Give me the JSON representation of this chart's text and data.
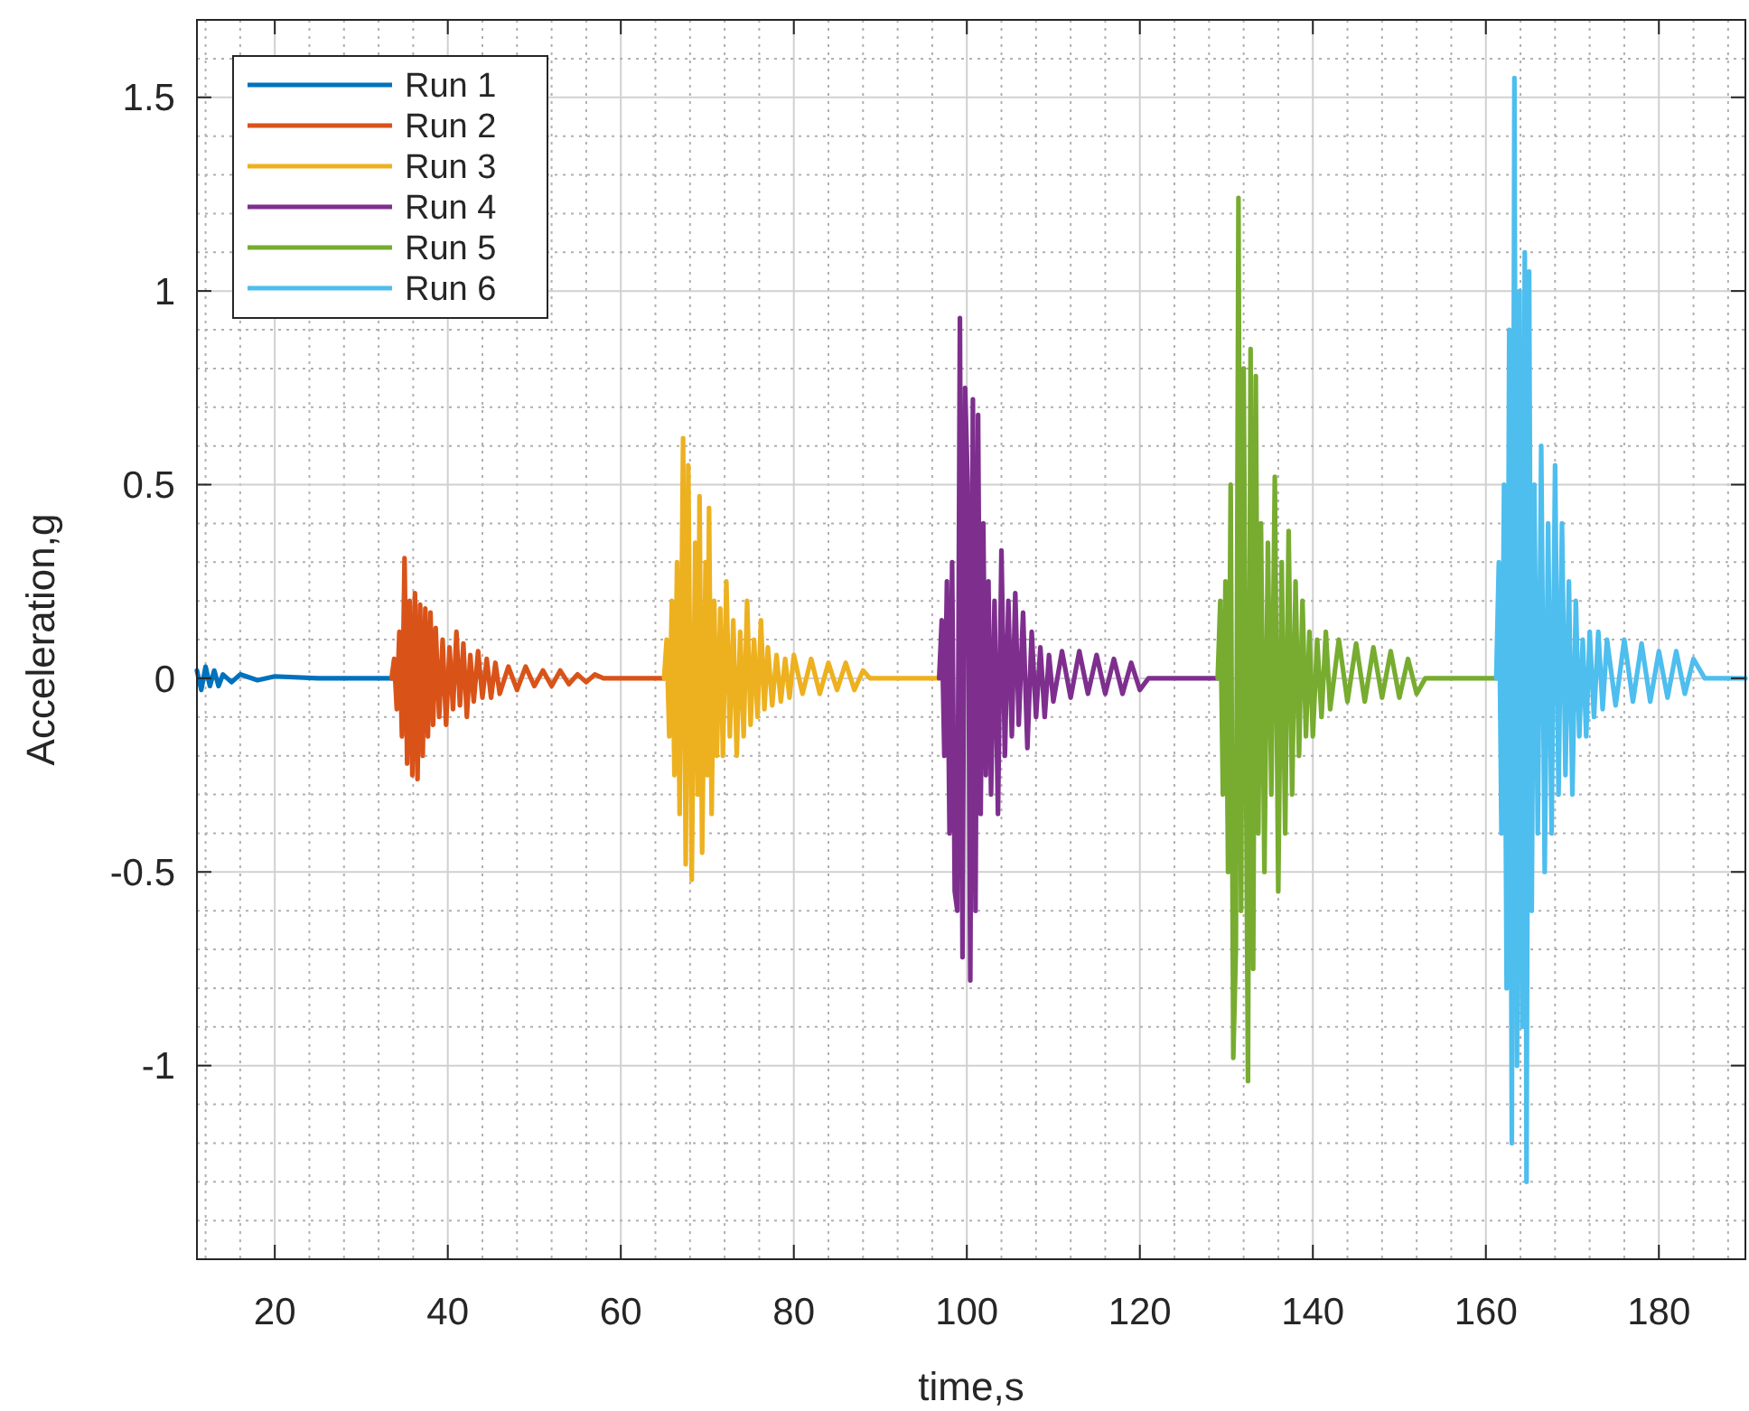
{
  "chart_data": {
    "type": "line",
    "xlabel": "time,s",
    "ylabel": "Acceleration,g",
    "xlim": [
      11,
      190
    ],
    "ylim": [
      -1.5,
      1.7
    ],
    "xticks": [
      20,
      40,
      60,
      80,
      100,
      120,
      140,
      160,
      180
    ],
    "yticks": [
      -1,
      -0.5,
      0,
      0.5,
      1,
      1.5
    ],
    "grid": true,
    "legend": "top left",
    "line_style": "solid",
    "marker": "none",
    "series": [
      {
        "name": "Run 1",
        "color": "#0072bd",
        "x": [
          11,
          11.5,
          12,
          12.5,
          13,
          13.5,
          14,
          15,
          16,
          18,
          20,
          25,
          30,
          33.5
        ],
        "values": [
          0.02,
          -0.03,
          0.03,
          -0.02,
          0.02,
          -0.02,
          0.01,
          -0.01,
          0.01,
          -0.005,
          0.005,
          0,
          0,
          0
        ]
      },
      {
        "name": "Run 2",
        "color": "#d95319",
        "x": [
          33.5,
          33.8,
          34.1,
          34.4,
          34.7,
          35,
          35.3,
          35.6,
          35.9,
          36.2,
          36.5,
          36.8,
          37.1,
          37.4,
          37.7,
          38,
          38.3,
          38.6,
          39,
          39.4,
          39.8,
          40.2,
          40.6,
          41,
          41.4,
          41.8,
          42.2,
          42.6,
          43,
          43.5,
          44,
          44.5,
          45,
          45.5,
          46,
          47,
          48,
          49,
          50,
          51,
          52,
          53,
          54,
          55,
          56,
          57,
          58,
          65
        ],
        "values": [
          0,
          0.05,
          -0.08,
          0.12,
          -0.15,
          0.31,
          -0.22,
          0.2,
          -0.25,
          0.22,
          -0.26,
          0.19,
          -0.2,
          0.18,
          -0.15,
          0.17,
          -0.12,
          0.13,
          -0.1,
          0.1,
          -0.12,
          0.08,
          -0.08,
          0.12,
          -0.07,
          0.09,
          -0.1,
          0.06,
          -0.06,
          0.07,
          -0.05,
          0.05,
          -0.05,
          0.04,
          -0.04,
          0.03,
          -0.03,
          0.03,
          -0.02,
          0.02,
          -0.02,
          0.02,
          -0.015,
          0.01,
          -0.01,
          0.01,
          0,
          0
        ]
      },
      {
        "name": "Run 3",
        "color": "#edb120",
        "x": [
          65,
          65.3,
          65.6,
          65.9,
          66.2,
          66.5,
          66.8,
          67.2,
          67.5,
          67.8,
          68.2,
          68.6,
          68.9,
          69.1,
          69.4,
          69.8,
          70,
          70.2,
          70.5,
          70.8,
          71.1,
          71.5,
          71.8,
          72.2,
          72.6,
          73,
          73.4,
          73.8,
          74.2,
          74.6,
          75,
          75.4,
          75.8,
          76.2,
          76.6,
          77,
          77.5,
          78,
          78.5,
          79,
          79.5,
          80,
          81,
          82,
          83,
          84,
          85,
          86,
          87,
          88,
          88.8,
          96.8
        ],
        "values": [
          0,
          0.1,
          -0.15,
          0.2,
          -0.25,
          0.3,
          -0.35,
          0.62,
          -0.48,
          0.55,
          -0.52,
          0.35,
          -0.3,
          0.47,
          -0.45,
          0.3,
          -0.25,
          0.44,
          -0.35,
          0.2,
          -0.2,
          0.18,
          -0.2,
          0.25,
          -0.15,
          0.15,
          -0.2,
          0.12,
          -0.15,
          0.2,
          -0.12,
          0.1,
          -0.1,
          0.15,
          -0.08,
          0.08,
          -0.07,
          0.06,
          -0.06,
          0.05,
          -0.05,
          0.06,
          -0.04,
          0.05,
          -0.04,
          0.04,
          -0.03,
          0.04,
          -0.03,
          0.02,
          0,
          0
        ]
      },
      {
        "name": "Run 4",
        "color": "#7e2f8e",
        "x": [
          96.8,
          97.1,
          97.4,
          97.7,
          98,
          98.3,
          98.6,
          98.9,
          99.2,
          99.5,
          99.8,
          100.1,
          100.4,
          100.7,
          101,
          101.3,
          101.6,
          101.9,
          102.2,
          102.5,
          102.8,
          103.2,
          103.6,
          104,
          104.4,
          104.8,
          105.2,
          105.6,
          106,
          106.5,
          107,
          107.5,
          108,
          108.5,
          109,
          109.5,
          110,
          111,
          112,
          113,
          114,
          115,
          116,
          117,
          118,
          119,
          120,
          121,
          129
        ],
        "values": [
          0,
          0.15,
          -0.2,
          0.25,
          -0.4,
          0.3,
          -0.55,
          -0.6,
          0.93,
          -0.72,
          0.75,
          0.5,
          -0.78,
          0.72,
          -0.6,
          0.68,
          -0.35,
          0.4,
          -0.25,
          0.25,
          -0.3,
          0.2,
          -0.35,
          0.33,
          -0.2,
          0.2,
          -0.15,
          0.22,
          -0.12,
          0.17,
          -0.18,
          0.12,
          -0.1,
          0.08,
          -0.1,
          0.06,
          -0.06,
          0.07,
          -0.05,
          0.07,
          -0.04,
          0.06,
          -0.04,
          0.05,
          -0.04,
          0.04,
          -0.03,
          0,
          0
        ]
      },
      {
        "name": "Run 5",
        "color": "#77ac30",
        "x": [
          129,
          129.3,
          129.6,
          129.9,
          130.2,
          130.5,
          130.8,
          131.1,
          131.4,
          131.7,
          132,
          132.5,
          132.8,
          133.1,
          133.4,
          133.7,
          134,
          134.4,
          134.8,
          135.2,
          135.6,
          136,
          136.4,
          136.8,
          137.2,
          137.6,
          138,
          138.4,
          138.8,
          139.2,
          139.6,
          140,
          140.5,
          141,
          141.5,
          142,
          143,
          144,
          145,
          146,
          147,
          148,
          149,
          150,
          151,
          152,
          153,
          161.2
        ],
        "values": [
          0,
          0.2,
          -0.3,
          0.25,
          -0.5,
          0.5,
          -0.98,
          -0.7,
          1.24,
          -0.6,
          0.8,
          -1.04,
          0.85,
          -0.75,
          0.78,
          -0.4,
          0.4,
          -0.5,
          0.35,
          -0.3,
          0.52,
          -0.55,
          0.3,
          -0.4,
          0.38,
          -0.3,
          0.25,
          -0.2,
          0.2,
          -0.15,
          0.12,
          -0.15,
          0.1,
          -0.1,
          0.12,
          -0.08,
          0.1,
          -0.06,
          0.09,
          -0.06,
          0.08,
          -0.05,
          0.07,
          -0.05,
          0.05,
          -0.04,
          0,
          0
        ]
      },
      {
        "name": "Run 6",
        "color": "#4dbeee",
        "x": [
          161.2,
          161.5,
          161.8,
          162.1,
          162.4,
          162.7,
          163,
          163.3,
          163.6,
          163.9,
          164.2,
          164.5,
          164.7,
          165,
          165.3,
          165.6,
          166,
          166.4,
          166.8,
          167.2,
          167.6,
          168,
          168.4,
          168.8,
          169.2,
          169.6,
          170,
          170.4,
          170.8,
          171.2,
          171.6,
          172,
          172.5,
          173,
          173.5,
          174,
          175,
          176,
          177,
          178,
          179,
          180,
          181,
          182,
          183,
          184,
          185.3,
          190
        ],
        "values": [
          0,
          0.3,
          -0.4,
          0.5,
          -0.8,
          0.9,
          -1.2,
          1.55,
          -1,
          1,
          -0.9,
          1.1,
          -1.3,
          1.05,
          -0.6,
          0.5,
          -0.4,
          0.6,
          -0.5,
          0.4,
          -0.4,
          0.55,
          -0.3,
          0.4,
          -0.25,
          0.25,
          -0.3,
          0.2,
          -0.15,
          0.1,
          -0.15,
          0.12,
          -0.1,
          0.12,
          -0.08,
          0.1,
          -0.07,
          0.1,
          -0.06,
          0.09,
          -0.06,
          0.07,
          -0.05,
          0.07,
          -0.04,
          0.05,
          0,
          0
        ]
      }
    ]
  }
}
